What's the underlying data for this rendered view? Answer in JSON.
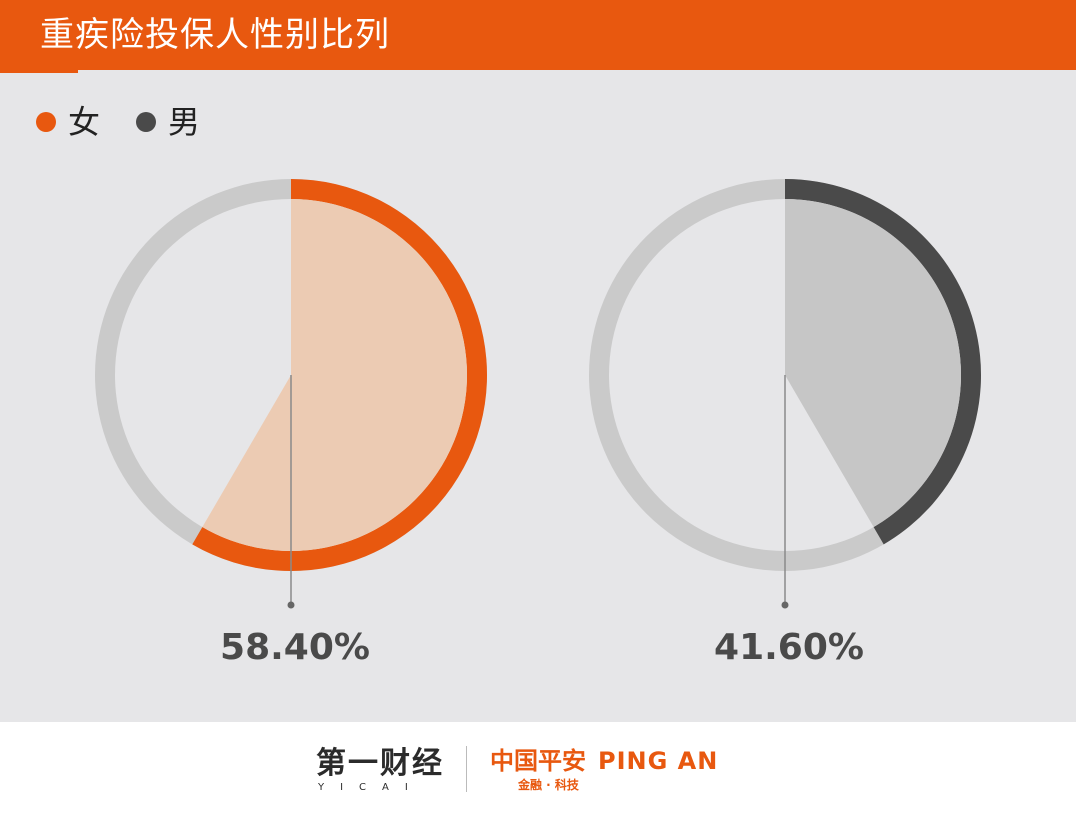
{
  "chart_data": {
    "type": "pie",
    "title": "重疾险投保人性别比列",
    "legend": {
      "placement": "top-left",
      "entries": [
        "女",
        "男"
      ]
    },
    "series": [
      {
        "name": "女",
        "value": 58.4,
        "label": "58.40%",
        "color": "#e8580f",
        "fill_color": "#eccbb3"
      },
      {
        "name": "男",
        "value": 41.6,
        "label": "41.60%",
        "color": "#4a4a4a",
        "fill_color": "#c6c6c6"
      }
    ],
    "track_color": "#cacaca",
    "inner_color": "#e6e6e8",
    "leader_color": "#8a8a8a"
  },
  "footer": {
    "yicai_zh": "第一财经",
    "yicai_en": "YICAI",
    "pingan_zh": "中国平安",
    "pingan_en": "PING AN",
    "pingan_sub": "金融 · 科技"
  }
}
